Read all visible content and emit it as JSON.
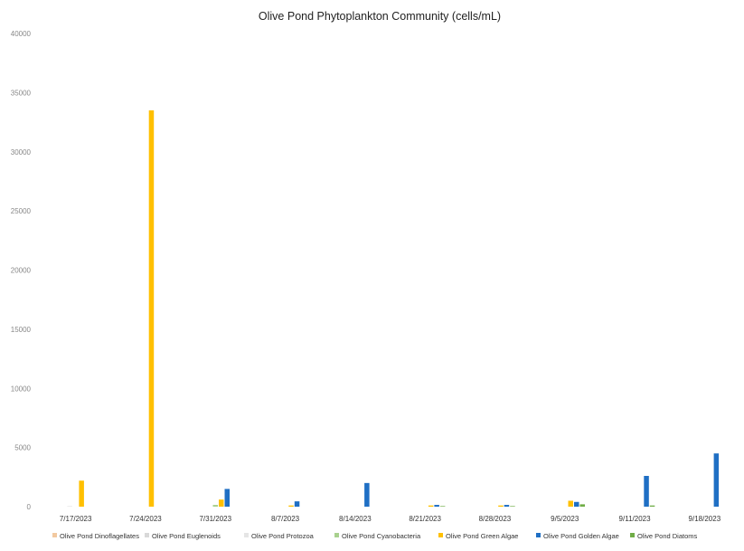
{
  "chart_data": {
    "type": "bar",
    "title": "Olive Pond Phytoplankton Community (cells/mL)",
    "xlabel": "",
    "ylabel": "",
    "ylim": [
      0,
      40000
    ],
    "yticks": [
      0,
      5000,
      10000,
      15000,
      20000,
      25000,
      30000,
      35000,
      40000
    ],
    "grid": false,
    "legend_position": "bottom",
    "categories": [
      "7/17/2023",
      "7/24/2023",
      "7/31/2023",
      "8/7/2023",
      "8/14/2023",
      "8/21/2023",
      "8/28/2023",
      "9/5/2023",
      "9/11/2023",
      "9/18/2023"
    ],
    "series": [
      {
        "name": "Olive Pond Dinoflagellates",
        "color": "#f2c9a0",
        "values": [
          0,
          0,
          0,
          0,
          0,
          0,
          0,
          0,
          0,
          0
        ]
      },
      {
        "name": "Olive Pond Euglenoids",
        "color": "#d9d9d9",
        "values": [
          0,
          0,
          0,
          0,
          0,
          0,
          0,
          0,
          0,
          0
        ]
      },
      {
        "name": "Olive Pond Protozoa",
        "color": "#e5e5e5",
        "values": [
          50,
          0,
          0,
          0,
          0,
          0,
          0,
          0,
          0,
          0
        ]
      },
      {
        "name": "Olive Pond Cyanobacteria",
        "color": "#a9d18e",
        "values": [
          0,
          0,
          150,
          0,
          0,
          0,
          0,
          0,
          0,
          0
        ]
      },
      {
        "name": "Olive Pond Green Algae",
        "color": "#ffc000",
        "values": [
          2200,
          33500,
          600,
          100,
          0,
          100,
          100,
          500,
          0,
          0
        ]
      },
      {
        "name": "Olive Pond Golden Algae",
        "color": "#1f6fc4",
        "values": [
          0,
          0,
          1500,
          450,
          2000,
          150,
          150,
          400,
          2600,
          4500
        ]
      },
      {
        "name": "Olive Pond Diatoms",
        "color": "#70ad47",
        "values": [
          0,
          0,
          0,
          0,
          0,
          50,
          50,
          200,
          100,
          0
        ]
      }
    ]
  }
}
